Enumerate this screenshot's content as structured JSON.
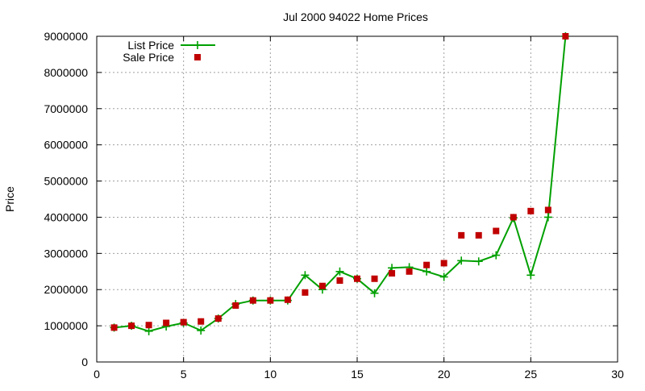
{
  "chart_data": {
    "type": "line",
    "title": "Jul 2000 94022 Home Prices",
    "xlabel": "",
    "ylabel": "Price",
    "xlim": [
      0,
      30
    ],
    "ylim": [
      0,
      9000000
    ],
    "x_ticks": [
      "0",
      "5",
      "10",
      "15",
      "20",
      "25",
      "30"
    ],
    "y_ticks": [
      "0",
      "1000000",
      "2000000",
      "3000000",
      "4000000",
      "5000000",
      "6000000",
      "7000000",
      "8000000",
      "9000000"
    ],
    "grid": true,
    "legend_position": "top-left",
    "series": [
      {
        "name": "List Price",
        "style": "line+plus",
        "color": "#00a000",
        "x": [
          1,
          2,
          3,
          4,
          5,
          6,
          7,
          8,
          9,
          10,
          11,
          12,
          13,
          14,
          15,
          16,
          17,
          18,
          19,
          20,
          21,
          22,
          23,
          24,
          25,
          26,
          27
        ],
        "values": [
          950000,
          1000000,
          850000,
          980000,
          1080000,
          870000,
          1200000,
          1600000,
          1700000,
          1700000,
          1700000,
          2400000,
          2000000,
          2500000,
          2300000,
          1900000,
          2600000,
          2620000,
          2500000,
          2350000,
          2800000,
          2780000,
          2950000,
          3980000,
          2400000,
          4000000,
          9000000
        ]
      },
      {
        "name": "Sale Price",
        "style": "square",
        "color": "#c00000",
        "x": [
          1,
          2,
          3,
          4,
          5,
          6,
          7,
          8,
          9,
          10,
          11,
          12,
          13,
          14,
          15,
          16,
          17,
          18,
          19,
          20,
          21,
          22,
          23,
          24,
          25,
          26,
          27
        ],
        "values": [
          950000,
          1000000,
          1020000,
          1080000,
          1100000,
          1120000,
          1200000,
          1560000,
          1700000,
          1700000,
          1720000,
          1920000,
          2100000,
          2250000,
          2300000,
          2300000,
          2450000,
          2500000,
          2680000,
          2730000,
          3500000,
          3500000,
          3620000,
          4000000,
          4170000,
          4200000,
          9000000
        ]
      }
    ]
  }
}
